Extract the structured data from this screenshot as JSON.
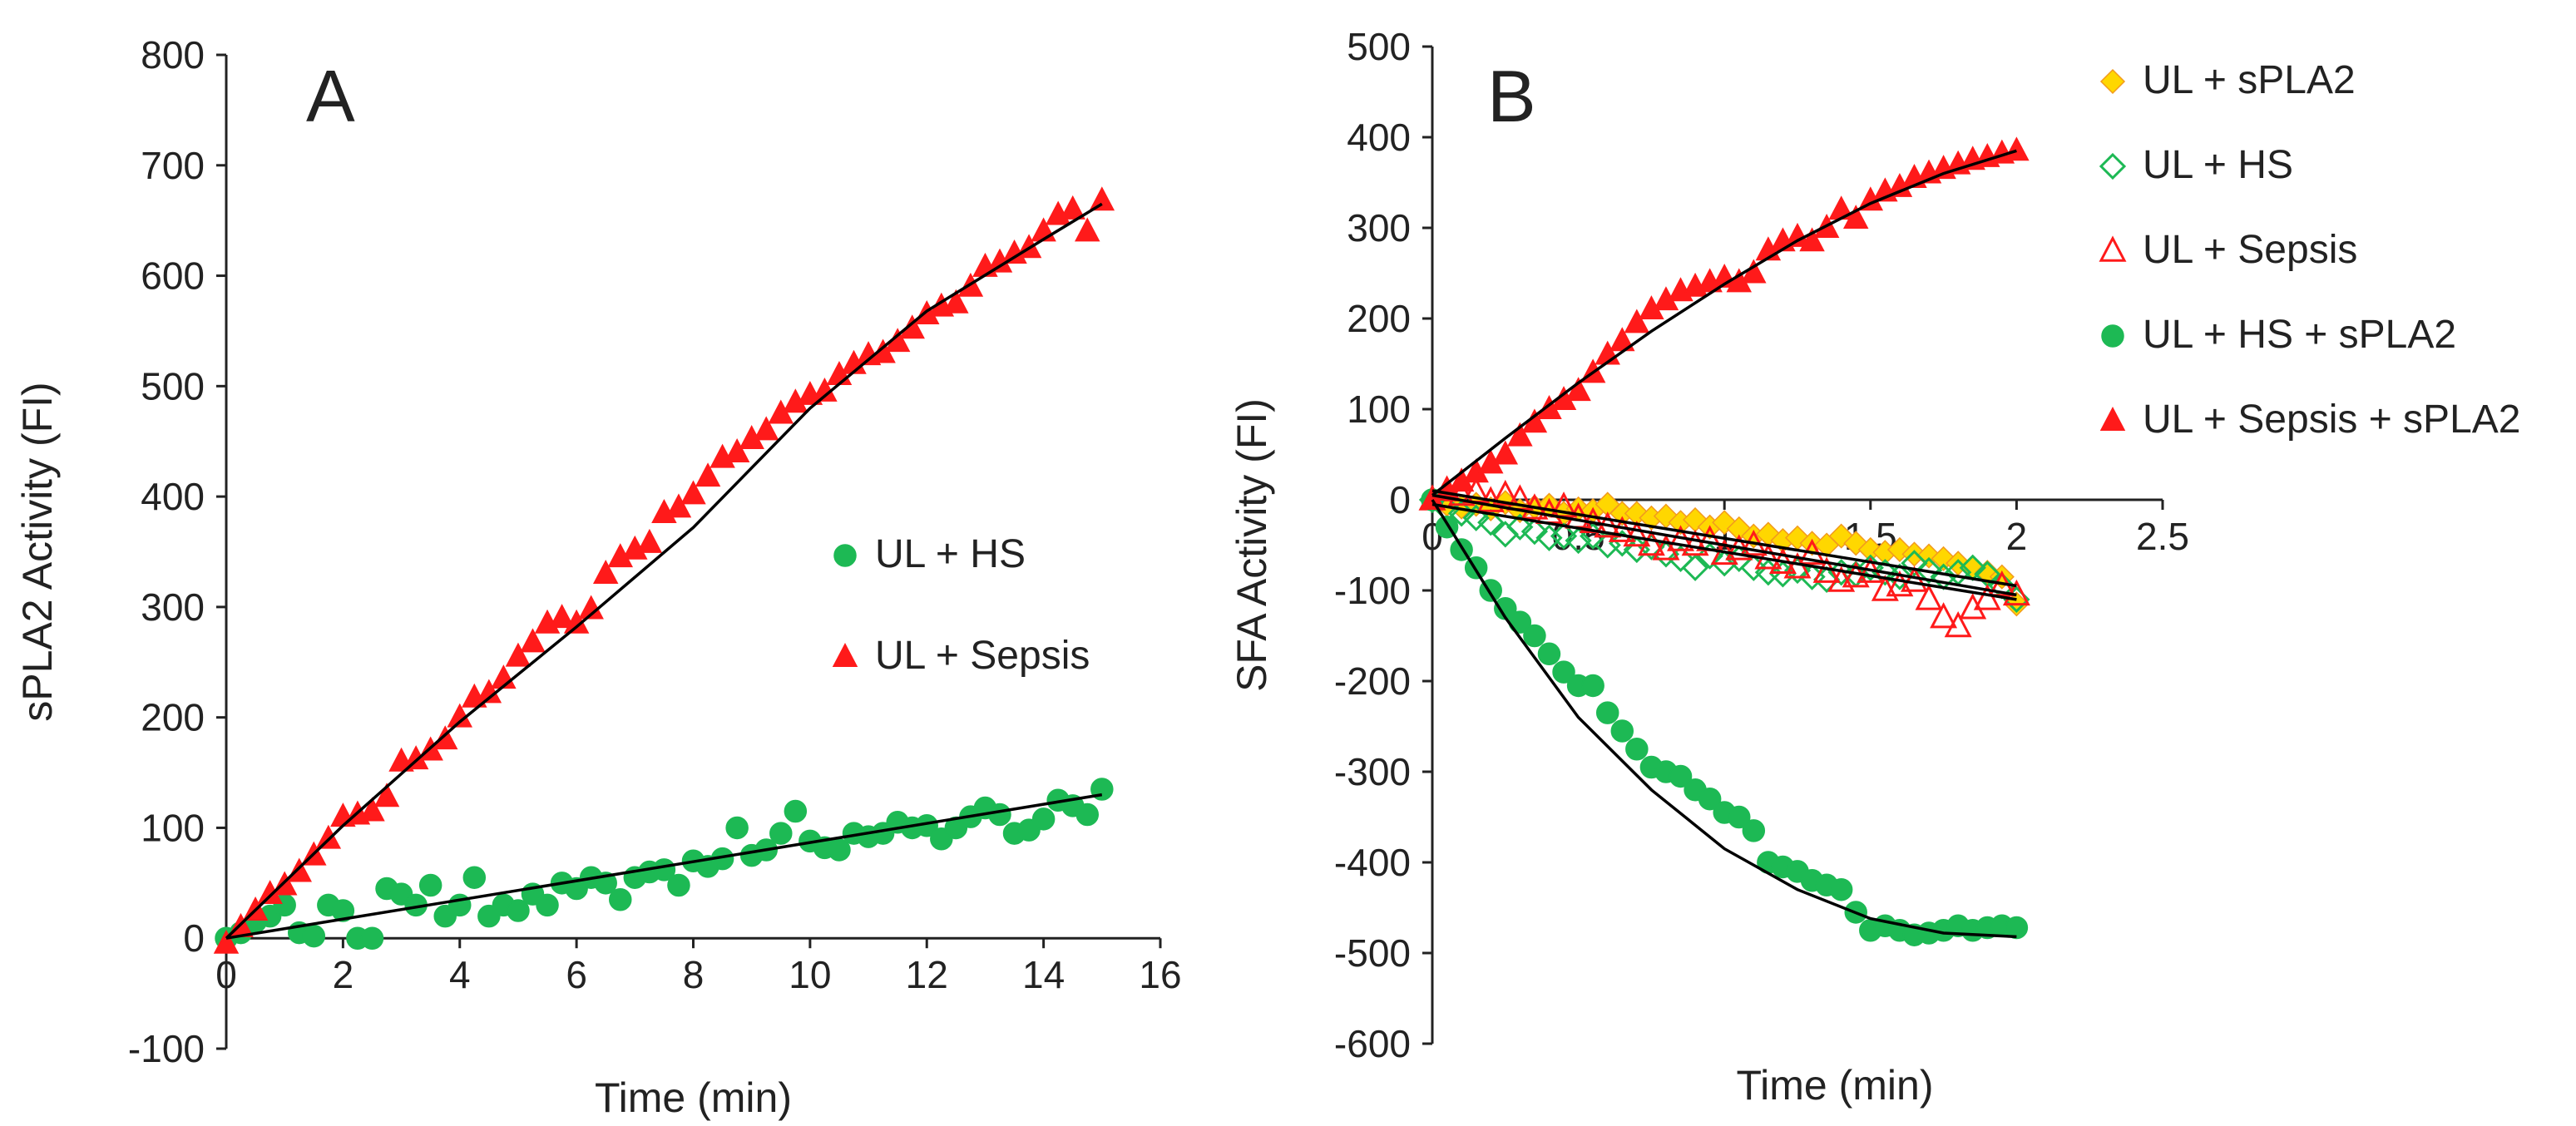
{
  "chart_data": [
    {
      "panel": "A",
      "type": "scatter",
      "title": "",
      "xlabel": "Time (min)",
      "ylabel": "sPLA2 Activity (FI)",
      "xlim": [
        0,
        16
      ],
      "ylim": [
        -100,
        800
      ],
      "xticks": [
        0,
        2,
        4,
        6,
        8,
        10,
        12,
        14,
        16
      ],
      "yticks": [
        -100,
        0,
        100,
        200,
        300,
        400,
        500,
        600,
        700,
        800
      ],
      "legend_position": "center-right",
      "series": [
        {
          "name": "UL + HS",
          "marker": "circle",
          "filled": true,
          "color": "#1DB954",
          "x": [
            0,
            0.25,
            0.5,
            0.75,
            1,
            1.25,
            1.5,
            1.75,
            2,
            2.25,
            2.5,
            2.75,
            3,
            3.25,
            3.5,
            3.75,
            4,
            4.25,
            4.5,
            4.75,
            5,
            5.25,
            5.5,
            5.75,
            6,
            6.25,
            6.5,
            6.75,
            7,
            7.25,
            7.5,
            7.75,
            8,
            8.25,
            8.5,
            8.75,
            9,
            9.25,
            9.5,
            9.75,
            10,
            10.25,
            10.5,
            10.75,
            11,
            11.25,
            11.5,
            11.75,
            12,
            12.25,
            12.5,
            12.75,
            13,
            13.25,
            13.5,
            13.75,
            14,
            14.25,
            14.5,
            14.75,
            15
          ],
          "y": [
            0,
            5,
            15,
            20,
            30,
            5,
            2,
            30,
            25,
            0,
            0,
            45,
            40,
            30,
            48,
            20,
            30,
            55,
            20,
            30,
            25,
            40,
            30,
            50,
            45,
            55,
            50,
            35,
            55,
            60,
            62,
            48,
            70,
            65,
            72,
            100,
            75,
            80,
            95,
            115,
            88,
            82,
            80,
            95,
            92,
            95,
            105,
            100,
            102,
            90,
            100,
            110,
            118,
            112,
            95,
            98,
            108,
            125,
            120,
            112,
            135
          ]
        },
        {
          "name": "UL + Sepsis",
          "marker": "triangle",
          "filled": true,
          "color": "#FF1A1A",
          "x": [
            0,
            0.25,
            0.5,
            0.75,
            1,
            1.25,
            1.5,
            1.75,
            2,
            2.25,
            2.5,
            2.75,
            3,
            3.25,
            3.5,
            3.75,
            4,
            4.25,
            4.5,
            4.75,
            5,
            5.25,
            5.5,
            5.75,
            6,
            6.25,
            6.5,
            6.75,
            7,
            7.25,
            7.5,
            7.75,
            8,
            8.25,
            8.5,
            8.75,
            9,
            9.25,
            9.5,
            9.75,
            10,
            10.25,
            10.5,
            10.75,
            11,
            11.25,
            11.5,
            11.75,
            12,
            12.25,
            12.5,
            12.75,
            13,
            13.25,
            13.5,
            13.75,
            14,
            14.25,
            14.5,
            14.75,
            15
          ],
          "y": [
            -5,
            10,
            25,
            40,
            48,
            60,
            75,
            90,
            110,
            112,
            115,
            128,
            160,
            162,
            170,
            180,
            200,
            218,
            222,
            235,
            255,
            268,
            285,
            290,
            285,
            298,
            330,
            345,
            352,
            358,
            385,
            390,
            402,
            418,
            435,
            440,
            452,
            460,
            475,
            485,
            492,
            495,
            510,
            520,
            528,
            530,
            540,
            552,
            565,
            572,
            575,
            590,
            608,
            612,
            620,
            625,
            640,
            655,
            660,
            640,
            668
          ]
        }
      ],
      "fits": [
        {
          "x": [
            0,
            15
          ],
          "y": [
            0,
            130
          ]
        },
        {
          "x": [
            0,
            2,
            4,
            6,
            8,
            10,
            12,
            14,
            15
          ],
          "y": [
            0,
            102,
            196,
            282,
            372,
            480,
            568,
            633,
            665
          ]
        }
      ]
    },
    {
      "panel": "B",
      "type": "scatter",
      "title": "",
      "xlabel": "Time (min)",
      "ylabel": "SFA Activity (FI)",
      "xlim": [
        0,
        2.5
      ],
      "ylim": [
        -600,
        500
      ],
      "xticks": [
        0,
        0.5,
        1,
        1.5,
        2,
        2.5
      ],
      "yticks": [
        -600,
        -500,
        -400,
        -300,
        -200,
        -100,
        0,
        100,
        200,
        300,
        400,
        500
      ],
      "legend_position": "top-right",
      "series": [
        {
          "name": "UL + sPLA2",
          "marker": "diamond",
          "filled": true,
          "color": "#FFD700",
          "stroke": "#F29A1D",
          "x": [
            0,
            0.05,
            0.1,
            0.15,
            0.2,
            0.25,
            0.3,
            0.35,
            0.4,
            0.45,
            0.5,
            0.55,
            0.6,
            0.65,
            0.7,
            0.75,
            0.8,
            0.85,
            0.9,
            0.95,
            1,
            1.05,
            1.1,
            1.15,
            1.2,
            1.25,
            1.3,
            1.35,
            1.4,
            1.45,
            1.5,
            1.55,
            1.6,
            1.65,
            1.7,
            1.75,
            1.8,
            1.85,
            1.9,
            1.95,
            2
          ],
          "y": [
            0,
            -5,
            -8,
            -5,
            -10,
            -3,
            -12,
            -8,
            -6,
            -15,
            -10,
            -12,
            -5,
            -15,
            -15,
            -20,
            -18,
            -25,
            -22,
            -30,
            -25,
            -32,
            -40,
            -38,
            -45,
            -42,
            -48,
            -50,
            -40,
            -48,
            -55,
            -58,
            -55,
            -60,
            -62,
            -65,
            -70,
            -75,
            -80,
            -85,
            -115
          ]
        },
        {
          "name": "UL + HS",
          "marker": "diamond",
          "filled": false,
          "color": "#1DB954",
          "x": [
            0,
            0.05,
            0.1,
            0.15,
            0.2,
            0.25,
            0.3,
            0.35,
            0.4,
            0.45,
            0.5,
            0.55,
            0.6,
            0.65,
            0.7,
            0.75,
            0.8,
            0.85,
            0.9,
            0.95,
            1,
            1.05,
            1.1,
            1.15,
            1.2,
            1.25,
            1.3,
            1.35,
            1.4,
            1.45,
            1.5,
            1.55,
            1.6,
            1.65,
            1.7,
            1.75,
            1.8,
            1.85,
            1.9,
            1.95,
            2
          ],
          "y": [
            0,
            -10,
            -15,
            -20,
            -25,
            -38,
            -30,
            -35,
            -42,
            -40,
            -45,
            -40,
            -50,
            -48,
            -55,
            -52,
            -60,
            -65,
            -75,
            -62,
            -70,
            -65,
            -75,
            -80,
            -82,
            -78,
            -85,
            -88,
            -80,
            -82,
            -75,
            -80,
            -85,
            -70,
            -78,
            -85,
            -80,
            -75,
            -82,
            -95,
            -110
          ]
        },
        {
          "name": "UL + Sepsis",
          "marker": "triangle",
          "filled": false,
          "color": "#FF1A1A",
          "x": [
            0,
            0.05,
            0.1,
            0.15,
            0.2,
            0.25,
            0.3,
            0.35,
            0.4,
            0.45,
            0.5,
            0.55,
            0.6,
            0.65,
            0.7,
            0.75,
            0.8,
            0.85,
            0.9,
            0.95,
            1,
            1.05,
            1.1,
            1.15,
            1.2,
            1.25,
            1.3,
            1.35,
            1.4,
            1.45,
            1.5,
            1.55,
            1.6,
            1.65,
            1.7,
            1.75,
            1.8,
            1.85,
            1.9,
            1.95,
            2
          ],
          "y": [
            0,
            10,
            5,
            8,
            -2,
            5,
            0,
            -10,
            -15,
            -8,
            -20,
            -25,
            -30,
            -35,
            -40,
            -50,
            -55,
            -45,
            -50,
            -45,
            -60,
            -55,
            -50,
            -65,
            -70,
            -75,
            -60,
            -80,
            -90,
            -85,
            -80,
            -100,
            -95,
            -90,
            -110,
            -130,
            -140,
            -120,
            -110,
            -95,
            -105
          ]
        },
        {
          "name": "UL + HS + sPLA2",
          "marker": "circle",
          "filled": true,
          "color": "#1DB954",
          "x": [
            0,
            0.05,
            0.1,
            0.15,
            0.2,
            0.25,
            0.3,
            0.35,
            0.4,
            0.45,
            0.5,
            0.55,
            0.6,
            0.65,
            0.7,
            0.75,
            0.8,
            0.85,
            0.9,
            0.95,
            1,
            1.05,
            1.1,
            1.15,
            1.2,
            1.25,
            1.3,
            1.35,
            1.4,
            1.45,
            1.5,
            1.55,
            1.6,
            1.65,
            1.7,
            1.75,
            1.8,
            1.85,
            1.9,
            1.95,
            2
          ],
          "y": [
            0,
            -30,
            -55,
            -75,
            -100,
            -120,
            -135,
            -150,
            -170,
            -190,
            -205,
            -205,
            -235,
            -255,
            -275,
            -295,
            -300,
            -305,
            -320,
            -330,
            -345,
            -350,
            -365,
            -400,
            -405,
            -410,
            -420,
            -425,
            -430,
            -455,
            -475,
            -470,
            -475,
            -480,
            -478,
            -475,
            -470,
            -475,
            -472,
            -470,
            -472
          ]
        },
        {
          "name": "UL + Sepsis + sPLA2",
          "marker": "triangle",
          "filled": true,
          "color": "#FF1A1A",
          "x": [
            0,
            0.05,
            0.1,
            0.15,
            0.2,
            0.25,
            0.3,
            0.35,
            0.4,
            0.45,
            0.5,
            0.55,
            0.6,
            0.65,
            0.7,
            0.75,
            0.8,
            0.85,
            0.9,
            0.95,
            1,
            1.05,
            1.1,
            1.15,
            1.2,
            1.25,
            1.3,
            1.35,
            1.4,
            1.45,
            1.5,
            1.55,
            1.6,
            1.65,
            1.7,
            1.75,
            1.8,
            1.85,
            1.9,
            1.95,
            2
          ],
          "y": [
            0,
            10,
            20,
            30,
            40,
            50,
            70,
            85,
            100,
            110,
            120,
            140,
            160,
            175,
            195,
            210,
            220,
            230,
            235,
            240,
            245,
            240,
            250,
            275,
            285,
            290,
            285,
            300,
            320,
            310,
            330,
            340,
            345,
            355,
            360,
            365,
            370,
            375,
            378,
            382,
            385
          ]
        }
      ],
      "fits": [
        {
          "x": [
            0,
            0.25,
            0.5,
            0.75,
            1,
            1.25,
            1.5,
            1.75,
            2
          ],
          "y": [
            5,
            68,
            129,
            186,
            238,
            286,
            327,
            360,
            385
          ]
        },
        {
          "x": [
            0,
            0.25,
            0.5,
            0.75,
            1,
            1.25,
            1.5,
            1.75,
            2
          ],
          "y": [
            0,
            -130,
            -240,
            -320,
            -385,
            -430,
            -462,
            -478,
            -482
          ]
        },
        {
          "x": [
            0,
            2
          ],
          "y": [
            10,
            -95
          ]
        },
        {
          "x": [
            0,
            2
          ],
          "y": [
            5,
            -105
          ]
        },
        {
          "x": [
            0,
            2
          ],
          "y": [
            -5,
            -110
          ]
        }
      ]
    }
  ],
  "legend_a": [
    {
      "label": "UL + HS",
      "marker": "circle",
      "filled": true,
      "color": "#1DB954"
    },
    {
      "label": "UL + Sepsis",
      "marker": "triangle",
      "filled": true,
      "color": "#FF1A1A"
    }
  ],
  "legend_b": [
    {
      "label": "UL + sPLA2",
      "marker": "diamond",
      "filled": true,
      "color": "#FFD700",
      "stroke": "#F29A1D"
    },
    {
      "label": "UL + HS",
      "marker": "diamond",
      "filled": false,
      "color": "#1DB954"
    },
    {
      "label": "UL + Sepsis",
      "marker": "triangle",
      "filled": false,
      "color": "#FF1A1A"
    },
    {
      "label": "UL + HS + sPLA2",
      "marker": "circle",
      "filled": true,
      "color": "#1DB954"
    },
    {
      "label": "UL + Sepsis + sPLA2",
      "marker": "triangle",
      "filled": true,
      "color": "#FF1A1A"
    }
  ],
  "panel_labels": {
    "a": "A",
    "b": "B"
  }
}
